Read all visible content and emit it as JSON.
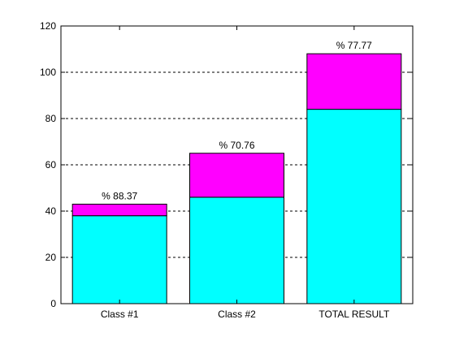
{
  "chart_data": {
    "type": "bar",
    "stacked": true,
    "categories": [
      "Class #1",
      "Class #2",
      "TOTAL RESULT"
    ],
    "series": [
      {
        "values": [
          38,
          46,
          84
        ],
        "color": "#00ffff"
      },
      {
        "values": [
          5,
          19,
          24
        ],
        "color": "#ff00ff"
      }
    ],
    "data_labels": [
      "% 88.37",
      "% 70.76",
      "% 77.77"
    ],
    "ylim": [
      0,
      120
    ],
    "yticks": [
      0,
      20,
      40,
      60,
      80,
      100,
      120
    ],
    "grid": "horizontal-dashed",
    "title": "",
    "xlabel": "",
    "ylabel": ""
  }
}
